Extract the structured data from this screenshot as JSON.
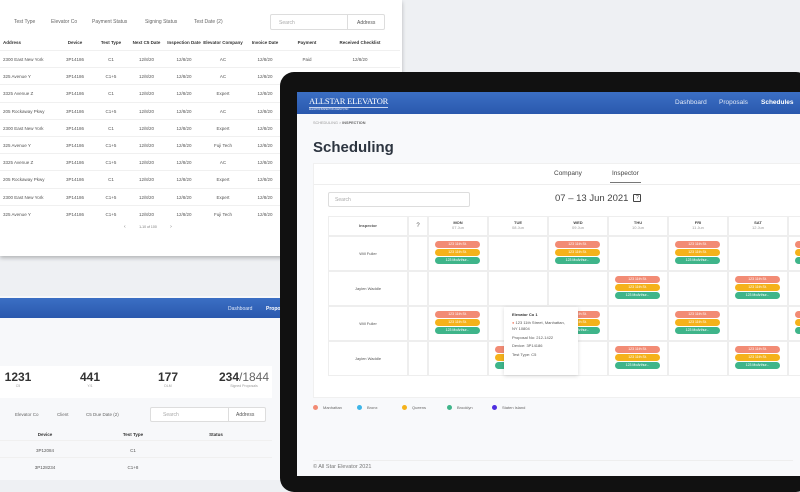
{
  "colors": {
    "nav_blue": "#2f62b8",
    "manhattan": "#f28b74",
    "bronx": "#3db5e8",
    "queens": "#f5b21b",
    "brooklyn": "#3fb58a",
    "staten_island": "#4f2fe0"
  },
  "screen_a": {
    "filters": [
      "Test Type",
      "Elevator Co",
      "Payment Status",
      "Signing Status",
      "Test Date (2)"
    ],
    "search_placeholder": "Search",
    "address_label": "Address",
    "columns": [
      "Address",
      "Device",
      "Test Type",
      "Next C5 Date",
      "Inspection Date",
      "Elevator Company",
      "Invoice Date",
      "Payment",
      "Received Checklist"
    ],
    "rows": [
      [
        "2300 East New York",
        "3P14186",
        "C1",
        "12/8/20",
        "12/8/20",
        "AC",
        "12/8/20",
        "Paid",
        "12/8/20"
      ],
      [
        "325 Avenue Y",
        "3P14186",
        "C1+5",
        "12/8/20",
        "12/8/20",
        "AC",
        "12/8/20",
        "",
        ""
      ],
      [
        "3325 Avenue Z",
        "3P14186",
        "C1",
        "12/8/20",
        "12/8/20",
        "Expert",
        "12/8/20",
        "",
        ""
      ],
      [
        "205 Rockaway Pkwy",
        "3P14186",
        "C1+5",
        "12/8/20",
        "12/8/20",
        "AC",
        "12/8/20",
        "",
        ""
      ],
      [
        "2300 East New York",
        "3P14186",
        "C1",
        "12/8/20",
        "12/8/20",
        "Expert",
        "12/8/20",
        "",
        ""
      ],
      [
        "325 Avenue Y",
        "3P14186",
        "C1+5",
        "12/8/20",
        "12/8/20",
        "Fuji Tech",
        "12/8/20",
        "",
        ""
      ],
      [
        "3325 Avenue Z",
        "3P14186",
        "C1+5",
        "12/8/20",
        "12/8/20",
        "AC",
        "12/8/20",
        "",
        ""
      ],
      [
        "205 Rockaway Pkwy",
        "3P14186",
        "C1",
        "12/8/20",
        "12/8/20",
        "Expert",
        "12/8/20",
        "",
        ""
      ],
      [
        "2300 East New York",
        "3P14186",
        "C1+5",
        "12/8/20",
        "12/8/20",
        "Expert",
        "12/8/20",
        "",
        ""
      ],
      [
        "325 Avenue Y",
        "3P14186",
        "C1+5",
        "12/8/20",
        "12/8/20",
        "Fuji Tech",
        "12/8/20",
        "",
        ""
      ]
    ],
    "pagination": "1-10 of 100"
  },
  "screen_b": {
    "nav": [
      "Dashboard",
      "Propo"
    ],
    "stats": [
      {
        "value": "1231",
        "label": "C5"
      },
      {
        "value": "441",
        "label": "Y/1"
      },
      {
        "value": "177",
        "label": "DLM"
      },
      {
        "value": "234",
        "total": "/1844",
        "label": "Signed Proposals"
      }
    ],
    "filters": [
      "Elevator Co",
      "Client",
      "C5 Due Date (2)"
    ],
    "search_placeholder": "Search",
    "address_label": "Address",
    "columns": [
      "Device",
      "Test Type",
      "Status"
    ],
    "rows": [
      [
        "3P12084",
        "C1",
        ""
      ],
      [
        "3P128234",
        "C1+8",
        ""
      ]
    ]
  },
  "scheduling": {
    "logo": "ALLSTAR ELEVATOR",
    "logo_sub": "ELEVATOR INSPECTION AGENCY, INC",
    "nav": [
      "Dashboard",
      "Proposals",
      "Schedules"
    ],
    "breadcrumb": {
      "parent": "SCHEDULING",
      "sep": ">",
      "current": "INSPECTION"
    },
    "title": "Scheduling",
    "tabs": [
      "Company",
      "Inspector"
    ],
    "active_tab": "Inspector",
    "search_placeholder": "Search",
    "date_range": "07 – 13 Jun 2021",
    "inspector_header": "Inspector",
    "days": [
      {
        "d": "MON",
        "dt": "07 Jun"
      },
      {
        "d": "TUE",
        "dt": "08 Jun"
      },
      {
        "d": "WED",
        "dt": "09 Jun"
      },
      {
        "d": "THU",
        "dt": "10 Jun"
      },
      {
        "d": "FRI",
        "dt": "11 Jun"
      },
      {
        "d": "SAT",
        "dt": "12 Jun"
      },
      {
        "d": "SUN",
        "dt": "13 Jun"
      }
    ],
    "event_labels": [
      "123 11th St.",
      "123 11th St.",
      "123 McArthur..."
    ],
    "rows": [
      {
        "inspector": "Will Fuller",
        "days": [
          0,
          2,
          4,
          6
        ]
      },
      {
        "inspector": "Jaylen Waddle",
        "days": [
          3,
          5
        ]
      },
      {
        "inspector": "Will Fuller",
        "days": [
          0,
          2,
          4,
          6
        ]
      },
      {
        "inspector": "Jaylen Waddle",
        "days": [
          1,
          3,
          5
        ]
      }
    ],
    "tooltip": {
      "company": "Elevator Co 1",
      "address": "123 11th Street, Manhattan, NY 10804",
      "proposal": "Proposal No: 212-1422",
      "device": "Device: 3P14186",
      "test_type": "Test Type: C5"
    },
    "legend": [
      "Manhattan",
      "Bronx",
      "Queens",
      "Brooklyn",
      "Staten Island"
    ],
    "footer": "© All Star Elevator 2021"
  }
}
